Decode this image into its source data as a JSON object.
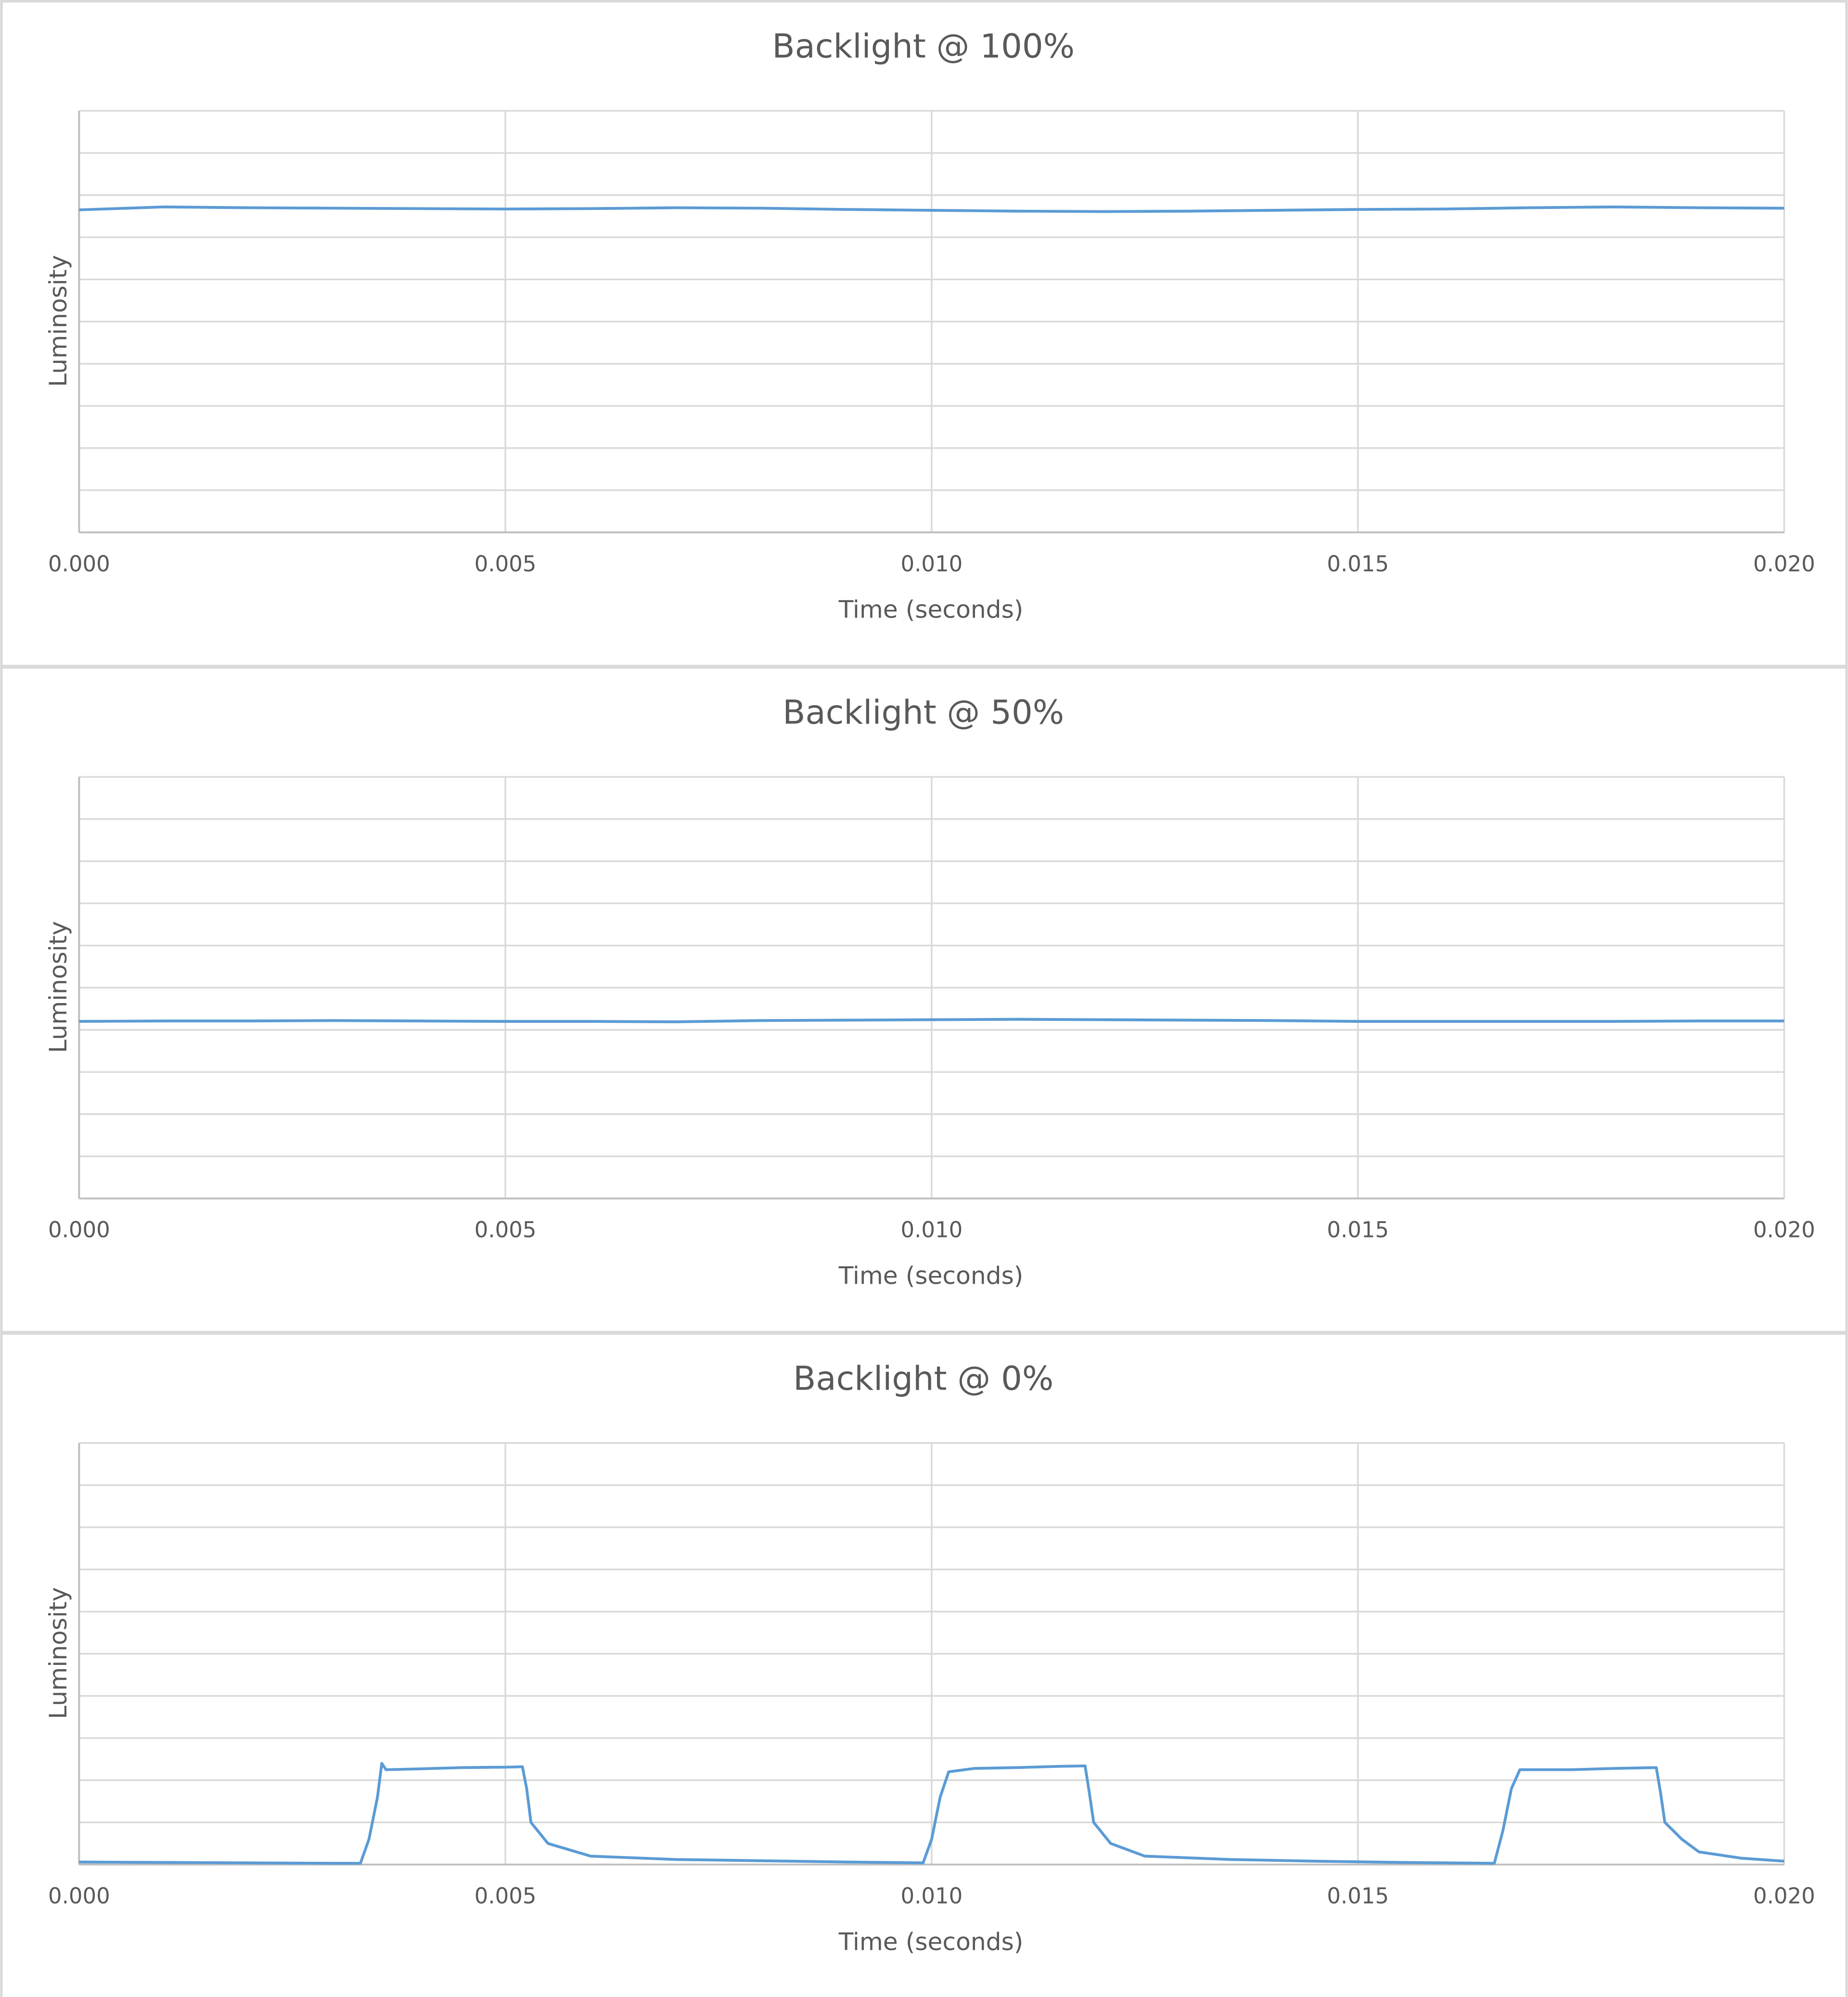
{
  "chart_data": [
    {
      "type": "line",
      "title": "Backlight @ 100%",
      "x_label": "Time (seconds)",
      "y_label": "Luminosity",
      "color": "#5b9bd5",
      "grid": true,
      "y_tick_labels": false,
      "xlim": [
        0,
        0.02
      ],
      "xticks": [
        {
          "value": 0,
          "label": "0.000"
        },
        0.005,
        {
          "value": 0.01,
          "label": "0.010"
        },
        0.015,
        {
          "value": 0.02,
          "label": "0.020"
        }
      ],
      "ylim": [
        0,
        10
      ],
      "yticks": [
        0,
        1,
        2,
        3,
        4,
        5,
        6,
        7,
        8,
        9,
        10
      ],
      "x": [
        0,
        0.001,
        0.002,
        0.003,
        0.004,
        0.005,
        0.006,
        0.007,
        0.008,
        0.009,
        0.01,
        0.011,
        0.012,
        0.013,
        0.014,
        0.015,
        0.016,
        0.017,
        0.018,
        0.019,
        0.02
      ],
      "values": [
        7.65,
        7.72,
        7.7,
        7.69,
        7.68,
        7.67,
        7.68,
        7.7,
        7.69,
        7.66,
        7.64,
        7.62,
        7.61,
        7.62,
        7.64,
        7.66,
        7.67,
        7.7,
        7.72,
        7.7,
        7.69
      ]
    },
    {
      "type": "line",
      "title": "Backlight @ 50%",
      "x_label": "Time (seconds)",
      "y_label": "Luminosity",
      "color": "#5b9bd5",
      "grid": true,
      "y_tick_labels": false,
      "xlim": [
        0,
        0.02
      ],
      "xticks": [
        {
          "value": 0,
          "label": "0.000"
        },
        0.005,
        {
          "value": 0.01,
          "label": "0.010"
        },
        0.015,
        {
          "value": 0.02,
          "label": "0.020"
        }
      ],
      "ylim": [
        0,
        10
      ],
      "yticks": [
        0,
        1,
        2,
        3,
        4,
        5,
        6,
        7,
        8,
        9,
        10
      ],
      "x": [
        0,
        0.001,
        0.002,
        0.003,
        0.004,
        0.005,
        0.006,
        0.007,
        0.008,
        0.009,
        0.01,
        0.011,
        0.012,
        0.013,
        0.014,
        0.015,
        0.016,
        0.017,
        0.018,
        0.019,
        0.02
      ],
      "values": [
        4.2,
        4.21,
        4.21,
        4.22,
        4.21,
        4.2,
        4.2,
        4.19,
        4.22,
        4.23,
        4.24,
        4.25,
        4.24,
        4.23,
        4.22,
        4.2,
        4.2,
        4.2,
        4.2,
        4.21,
        4.21
      ]
    },
    {
      "type": "line",
      "title": "Backlight @ 0%",
      "x_label": "Time (seconds)",
      "y_label": "Luminosity",
      "color": "#5b9bd5",
      "grid": true,
      "y_tick_labels": false,
      "xlim": [
        0,
        0.02
      ],
      "xticks": [
        {
          "value": 0,
          "label": "0.000"
        },
        0.005,
        {
          "value": 0.01,
          "label": "0.010"
        },
        0.015,
        {
          "value": 0.02,
          "label": "0.020"
        }
      ],
      "ylim": [
        0,
        10
      ],
      "yticks": [
        0,
        1,
        2,
        3,
        4,
        5,
        6,
        7,
        8,
        9,
        10
      ],
      "x": [
        0,
        0.001,
        0.002,
        0.003,
        0.0033,
        0.0034,
        0.0035,
        0.00355,
        0.0036,
        0.004,
        0.0045,
        0.005,
        0.0052,
        0.00525,
        0.0053,
        0.0055,
        0.006,
        0.007,
        0.008,
        0.009,
        0.0099,
        0.01,
        0.0101,
        0.0102,
        0.0105,
        0.011,
        0.0115,
        0.0118,
        0.01185,
        0.0119,
        0.0121,
        0.0125,
        0.0135,
        0.0145,
        0.0155,
        0.0166,
        0.0167,
        0.0168,
        0.0169,
        0.0175,
        0.018,
        0.0185,
        0.01855,
        0.0186,
        0.0188,
        0.019,
        0.0195,
        0.02
      ],
      "values": [
        0.06,
        0.05,
        0.04,
        0.03,
        0.03,
        0.6,
        1.6,
        2.4,
        2.25,
        2.27,
        2.3,
        2.31,
        2.32,
        1.8,
        1.0,
        0.5,
        0.2,
        0.12,
        0.09,
        0.06,
        0.04,
        0.6,
        1.6,
        2.2,
        2.28,
        2.3,
        2.33,
        2.34,
        1.7,
        1.0,
        0.5,
        0.2,
        0.12,
        0.08,
        0.05,
        0.03,
        0.8,
        1.8,
        2.25,
        2.25,
        2.28,
        2.3,
        1.7,
        1.0,
        0.6,
        0.3,
        0.15,
        0.08
      ]
    }
  ]
}
